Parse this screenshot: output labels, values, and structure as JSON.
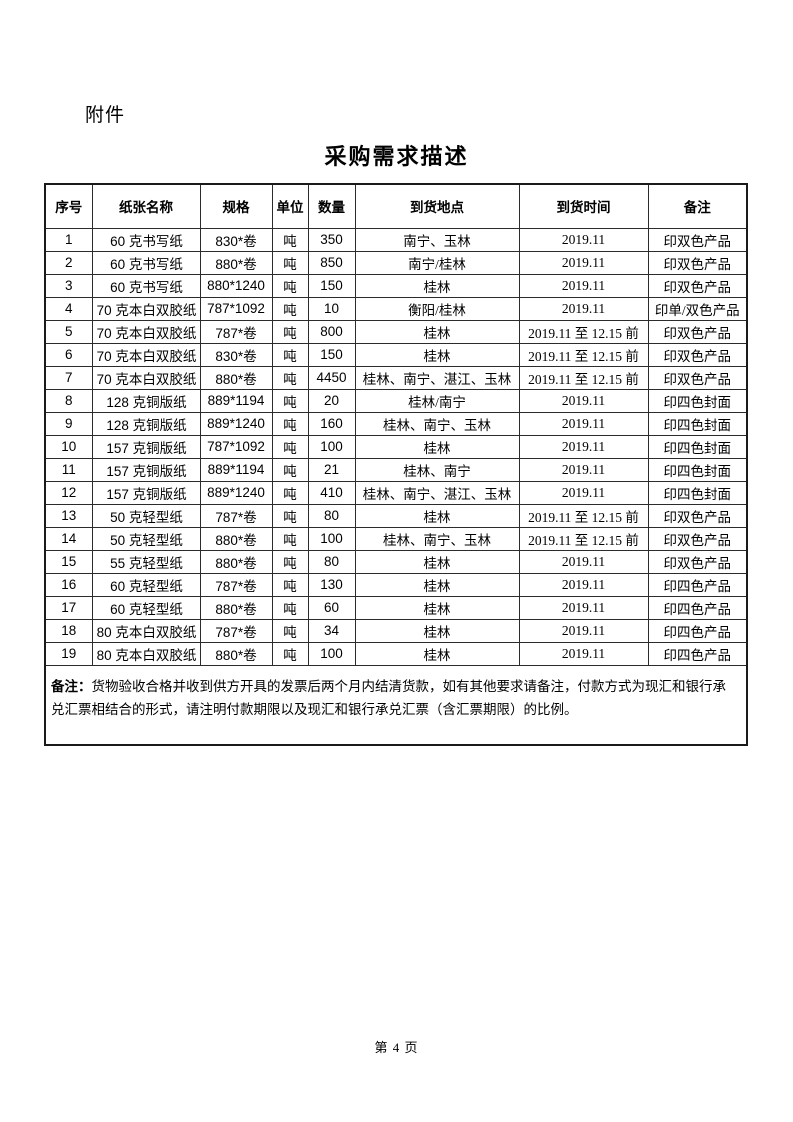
{
  "page": {
    "attachment_label": "附件",
    "title": "采购需求描述",
    "footer": "第 4 页"
  },
  "table": {
    "headers": [
      "序号",
      "纸张名称",
      "规格",
      "单位",
      "数量",
      "到货地点",
      "到货时间",
      "备注"
    ],
    "rows": [
      [
        "1",
        "60 克书写纸",
        "830*卷",
        "吨",
        "350",
        "南宁、玉林",
        "2019.11",
        "印双色产品"
      ],
      [
        "2",
        "60 克书写纸",
        "880*卷",
        "吨",
        "850",
        "南宁/桂林",
        "2019.11",
        "印双色产品"
      ],
      [
        "3",
        "60 克书写纸",
        "880*1240",
        "吨",
        "150",
        "桂林",
        "2019.11",
        "印双色产品"
      ],
      [
        "4",
        "70 克本白双胶纸",
        "787*1092",
        "吨",
        "10",
        "衡阳/桂林",
        "2019.11",
        "印单/双色产品"
      ],
      [
        "5",
        "70 克本白双胶纸",
        "787*卷",
        "吨",
        "800",
        "桂林",
        "2019.11 至 12.15 前",
        "印双色产品"
      ],
      [
        "6",
        "70 克本白双胶纸",
        "830*卷",
        "吨",
        "150",
        "桂林",
        "2019.11 至 12.15 前",
        "印双色产品"
      ],
      [
        "7",
        "70 克本白双胶纸",
        "880*卷",
        "吨",
        "4450",
        "桂林、南宁、湛江、玉林",
        "2019.11 至 12.15 前",
        "印双色产品"
      ],
      [
        "8",
        "128 克铜版纸",
        "889*1194",
        "吨",
        "20",
        "桂林/南宁",
        "2019.11",
        "印四色封面"
      ],
      [
        "9",
        "128 克铜版纸",
        "889*1240",
        "吨",
        "160",
        "桂林、南宁、玉林",
        "2019.11",
        "印四色封面"
      ],
      [
        "10",
        "157 克铜版纸",
        "787*1092",
        "吨",
        "100",
        "桂林",
        "2019.11",
        "印四色封面"
      ],
      [
        "11",
        "157 克铜版纸",
        "889*1194",
        "吨",
        "21",
        "桂林、南宁",
        "2019.11",
        "印四色封面"
      ],
      [
        "12",
        "157 克铜版纸",
        "889*1240",
        "吨",
        "410",
        "桂林、南宁、湛江、玉林",
        "2019.11",
        "印四色封面"
      ],
      [
        "13",
        "50 克轻型纸",
        "787*卷",
        "吨",
        "80",
        "桂林",
        "2019.11 至 12.15 前",
        "印双色产品"
      ],
      [
        "14",
        "50 克轻型纸",
        "880*卷",
        "吨",
        "100",
        "桂林、南宁、玉林",
        "2019.11 至 12.15 前",
        "印双色产品"
      ],
      [
        "15",
        "55 克轻型纸",
        "880*卷",
        "吨",
        "80",
        "桂林",
        "2019.11",
        "印双色产品"
      ],
      [
        "16",
        "60 克轻型纸",
        "787*卷",
        "吨",
        "130",
        "桂林",
        "2019.11",
        "印四色产品"
      ],
      [
        "17",
        "60 克轻型纸",
        "880*卷",
        "吨",
        "60",
        "桂林",
        "2019.11",
        "印四色产品"
      ],
      [
        "18",
        "80 克本白双胶纸",
        "787*卷",
        "吨",
        "34",
        "桂林",
        "2019.11",
        "印四色产品"
      ],
      [
        "19",
        "80 克本白双胶纸",
        "880*卷",
        "吨",
        "100",
        "桂林",
        "2019.11",
        "印四色产品"
      ]
    ],
    "note_label": "备注：",
    "note_text": "货物验收合格并收到供方开具的发票后两个月内结清货款，如有其他要求请备注，付款方式为现汇和银行承兑汇票相结合的形式，请注明付款期限以及现汇和银行承兑汇票（含汇票期限）的比例。"
  }
}
